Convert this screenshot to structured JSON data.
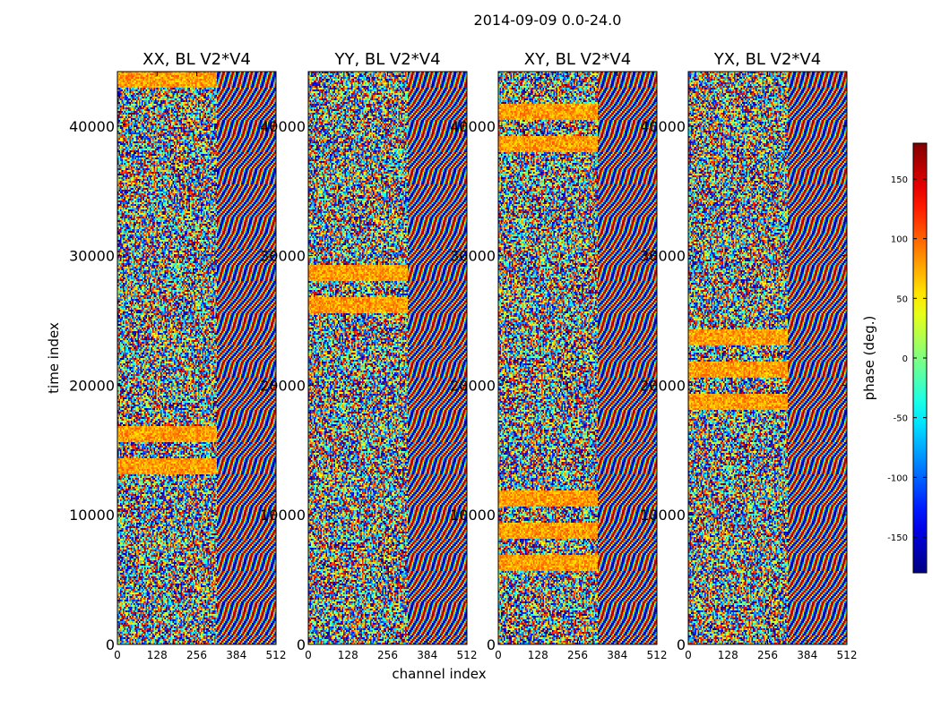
{
  "chart_data": {
    "type": "heatmap",
    "title": "2014-09-09 0.0-24.0",
    "xlabel": "channel index",
    "ylabel": "time index",
    "xlim": [
      0,
      512
    ],
    "ylim": [
      0,
      44200
    ],
    "x_ticks": [
      0,
      128,
      256,
      384,
      512
    ],
    "y_ticks": [
      0,
      10000,
      20000,
      30000,
      40000
    ],
    "panels": [
      {
        "name": "XX, BL V2*V4",
        "base_color": "#f2b830"
      },
      {
        "name": "YY, BL V2*V4",
        "base_color": "#58e8a0"
      },
      {
        "name": "XY, BL V2*V4",
        "base_color": "#3f8fd8"
      },
      {
        "name": "YX, BL V2*V4",
        "base_color": "#e8a040"
      }
    ],
    "colorbar": {
      "label": "phase (deg.)",
      "range": [
        -180,
        180
      ],
      "ticks": [
        150,
        100,
        50,
        0,
        -50,
        -100,
        -150
      ],
      "colormap": "jet"
    }
  }
}
